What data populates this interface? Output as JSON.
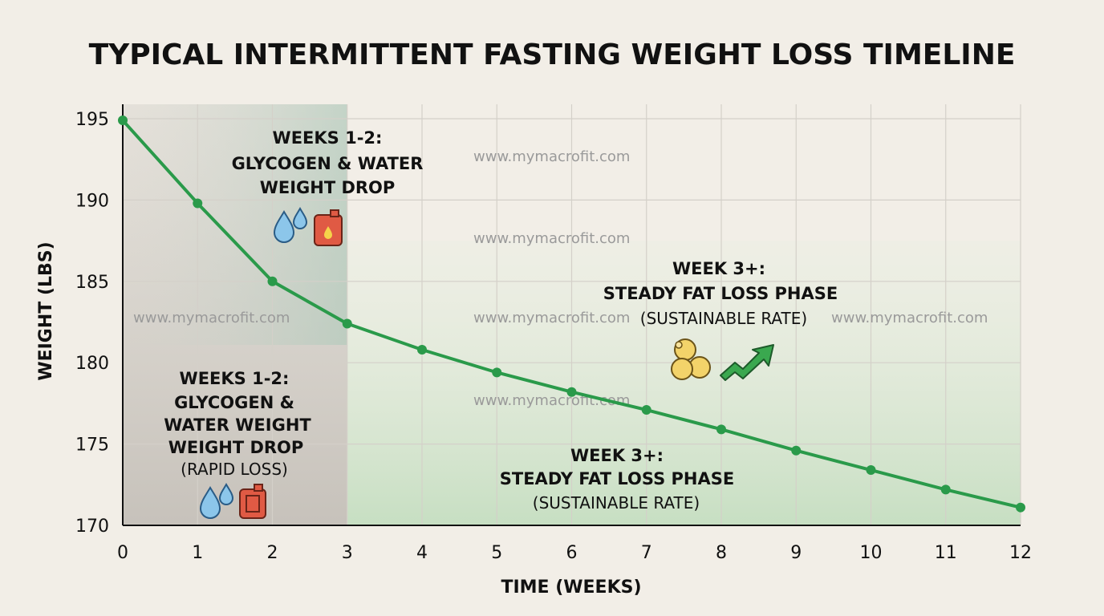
{
  "chart_data": {
    "type": "line",
    "title": "TYPICAL INTERMITTENT FASTING WEIGHT LOSS TIMELINE",
    "xlabel": "TIME (WEEKS)",
    "ylabel": "WEIGHT (LBS)",
    "xlim": [
      0,
      12
    ],
    "ylim": [
      170,
      195
    ],
    "x_ticks": [
      "0",
      "1",
      "2",
      "3",
      "4",
      "5",
      "6",
      "7",
      "8",
      "9",
      "10",
      "11",
      "12"
    ],
    "y_ticks": [
      "195",
      "190",
      "185",
      "180",
      "175",
      "170"
    ],
    "grid": true,
    "series": [
      {
        "x": [
          0,
          1,
          2,
          3,
          4,
          5,
          6,
          7,
          8,
          9,
          10,
          11,
          12
        ],
        "values": [
          194.9,
          189.8,
          185.0,
          182.4,
          180.8,
          179.4,
          178.2,
          177.1,
          175.9,
          174.6,
          173.4,
          172.2,
          171.1
        ],
        "color": "#2a9a4a"
      }
    ],
    "annotations": {
      "upper_left": {
        "lines": [
          "WEEKS 1-2:",
          "GLYCOGEN & WATER",
          "WEIGHT DROP"
        ]
      },
      "lower_left": {
        "bold_lines": [
          "WEEKS 1-2:",
          "GLYCOGEN &",
          "WATER WEIGHT",
          "WEIGHT DROP"
        ],
        "note": "(RAPID LOSS)"
      },
      "upper_right": {
        "bold_lines": [
          "WEEK 3+:",
          "STEADY FAT LOSS PHASE"
        ],
        "note": "(SUSTAINABLE RATE)"
      },
      "lower_right": {
        "bold_lines": [
          "WEEK 3+:",
          "STEADY FAT LOSS PHASE"
        ],
        "note": "(SUSTAINABLE RATE)"
      }
    },
    "watermark": "www.mymacrofit.com",
    "colors": {
      "line": "#2a9a4a",
      "rapid_region": "#c7c2bb",
      "steady_region": "#cfe3cc",
      "background": "#f2eee7"
    },
    "icons": [
      "water-drops-icon",
      "fuel-can-icon",
      "fat-cells-icon",
      "trend-arrow-icon"
    ]
  }
}
